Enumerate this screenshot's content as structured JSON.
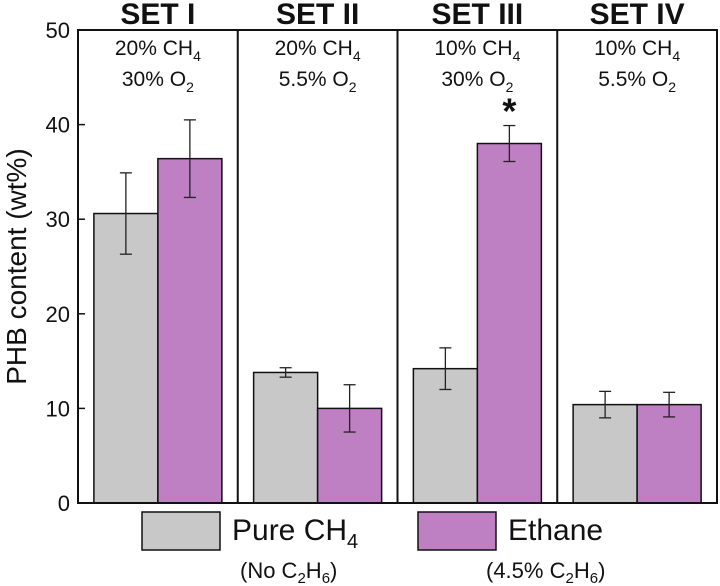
{
  "chart_data": {
    "type": "bar",
    "title": "",
    "ylabel": "PHB content (wt%)",
    "xlabel": "",
    "ylim": [
      0,
      50
    ],
    "yticks": [
      0,
      10,
      20,
      30,
      40,
      50
    ],
    "grid": false,
    "legend_position": "bottom",
    "groups": [
      {
        "id": "set1",
        "title": "SET I",
        "ch4": "20% CH",
        "o2": "30% O"
      },
      {
        "id": "set2",
        "title": "SET II",
        "ch4": "20% CH",
        "o2": "5.5% O"
      },
      {
        "id": "set3",
        "title": "SET III",
        "ch4": "10% CH",
        "o2": "30% O"
      },
      {
        "id": "set4",
        "title": "SET IV",
        "ch4": "10% CH",
        "o2": "5.5% O"
      }
    ],
    "sub": {
      "ch4": "4",
      "o2": "2"
    },
    "series": [
      {
        "name": "Pure CH4",
        "color": "#c8c8c8",
        "values": [
          30.6,
          13.8,
          14.2,
          10.4
        ],
        "errors": [
          4.3,
          0.5,
          2.2,
          1.4
        ]
      },
      {
        "name": "Ethane",
        "color": "#bf7fc3",
        "values": [
          36.4,
          10.0,
          38.0,
          10.4
        ],
        "errors": [
          4.1,
          2.5,
          1.9,
          1.3
        ]
      }
    ],
    "significance": [
      {
        "group": 2,
        "series": 1,
        "mark": "*"
      }
    ]
  },
  "legend": [
    {
      "label": "Pure CH",
      "sub": "4",
      "note_pre": "(No C",
      "note_sub1": "2",
      "note_mid": "H",
      "note_sub2": "6",
      "note_post": ")"
    },
    {
      "label": "Ethane",
      "sub": "",
      "note_pre": "(4.5% C",
      "note_sub1": "2",
      "note_mid": "H",
      "note_sub2": "6",
      "note_post": ")"
    }
  ]
}
